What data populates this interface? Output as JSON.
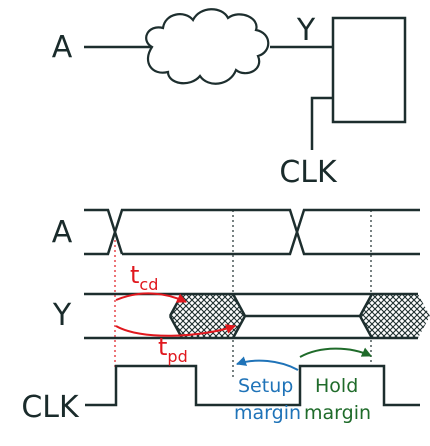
{
  "labels": {
    "a_top": "A",
    "y_top": "Y",
    "clk_top": "CLK",
    "a_wave": "A",
    "y_wave": "Y",
    "clk_wave": "CLK",
    "tcd_base": "t",
    "tcd_sub": "cd",
    "tpd_base": "t",
    "tpd_sub": "pd",
    "setup": "Setup",
    "setup_margin": "margin",
    "hold": "Hold",
    "hold_margin": "margin"
  },
  "colors": {
    "line": "#1d2e2e",
    "ink": "#1a2b2b",
    "tcd": "#e0181e",
    "tpd": "#e0181e",
    "setup": "#1f73b8",
    "hold": "#1f6b2a"
  },
  "icons": {
    "combinational_logic": "cloud-shape",
    "register": "flip-flop-box"
  }
}
